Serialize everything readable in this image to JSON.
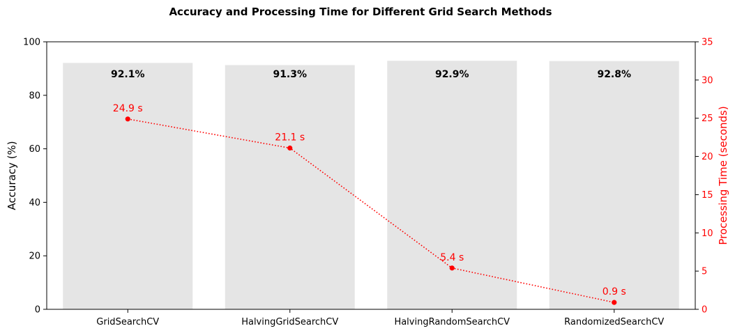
{
  "chart_data": {
    "type": "bar",
    "title": "Accuracy and Processing Time for Different Grid Search Methods",
    "categories": [
      "GridSearchCV",
      "HalvingGridSearchCV",
      "HalvingRandomSearchCV",
      "RandomizedSearchCV"
    ],
    "series": [
      {
        "name": "Accuracy",
        "type": "bar",
        "axis": "left",
        "values": [
          92.1,
          91.3,
          92.9,
          92.8
        ],
        "labels": [
          "92.1%",
          "91.3%",
          "92.9%",
          "92.8%"
        ],
        "color": "#e5e5e5"
      },
      {
        "name": "Processing Time",
        "type": "line",
        "axis": "right",
        "values": [
          24.9,
          21.1,
          5.4,
          0.9
        ],
        "labels": [
          "24.9 s",
          "21.1 s",
          "5.4 s",
          "0.9 s"
        ],
        "color": "#ff0000",
        "line_style": "dotted"
      }
    ],
    "ylabel": "Accuracy (%)",
    "ylim": [
      0,
      100
    ],
    "yticks": [
      0,
      20,
      40,
      60,
      80,
      100
    ],
    "y2label": "Processing Time (seconds)",
    "y2lim": [
      0,
      35
    ],
    "y2ticks": [
      0,
      5,
      10,
      15,
      20,
      25,
      30,
      35
    ],
    "grid": false,
    "legend": "none"
  }
}
